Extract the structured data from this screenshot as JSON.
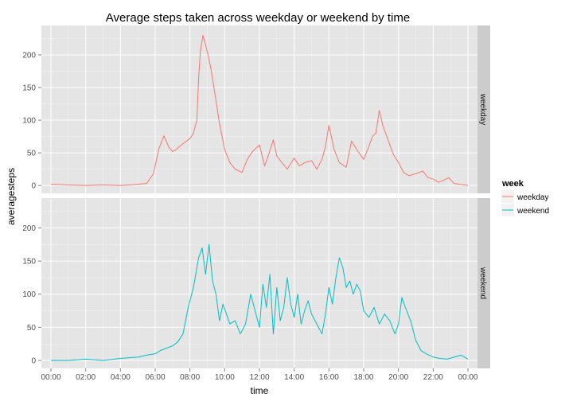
{
  "colors": {
    "panel_bg": "#e5e5e5",
    "strip_bg": "#cccccc",
    "grid_major": "#ffffff",
    "weekday": "#F8766D",
    "weekend": "#00BFC4"
  },
  "chart_data": {
    "type": "line",
    "title": "Average steps taken across weekday or weekend by time",
    "xlabel": "time",
    "ylabel": "averagesteps",
    "x_ticks": [
      "00:00",
      "02:00",
      "04:00",
      "06:00",
      "08:00",
      "10:00",
      "12:00",
      "14:00",
      "16:00",
      "18:00",
      "20:00",
      "22:00",
      "00:00"
    ],
    "x_tick_hours": [
      0,
      2,
      4,
      6,
      8,
      10,
      12,
      14,
      16,
      18,
      20,
      22,
      24
    ],
    "xlim_hours": [
      -0.55,
      24.55
    ],
    "ylim": [
      -12,
      245
    ],
    "y_ticks": [
      0,
      50,
      100,
      150,
      200
    ],
    "grid": true,
    "legend": {
      "title": "week",
      "position": "right",
      "entries": [
        "weekday",
        "weekend"
      ]
    },
    "facets": [
      "weekday",
      "weekend"
    ],
    "series": [
      {
        "name": "weekday",
        "x_hours": [
          0.0,
          1.0,
          2.0,
          3.0,
          4.0,
          5.0,
          5.5,
          5.9,
          6.2,
          6.5,
          6.8,
          7.0,
          7.2,
          7.5,
          7.8,
          8.0,
          8.2,
          8.4,
          8.5,
          8.6,
          8.75,
          9.0,
          9.2,
          9.5,
          9.7,
          10.0,
          10.3,
          10.6,
          11.0,
          11.3,
          11.6,
          12.0,
          12.3,
          12.5,
          12.8,
          13.0,
          13.3,
          13.6,
          14.0,
          14.3,
          14.6,
          15.0,
          15.3,
          15.6,
          15.8,
          16.0,
          16.3,
          16.6,
          17.0,
          17.3,
          17.6,
          18.0,
          18.3,
          18.5,
          18.7,
          18.9,
          19.1,
          19.4,
          19.7,
          20.0,
          20.3,
          20.6,
          21.0,
          21.4,
          21.7,
          22.0,
          22.3,
          22.6,
          22.9,
          23.2,
          23.5,
          23.8,
          24.0
        ],
        "y": [
          2,
          1,
          0,
          1,
          0,
          2,
          3,
          18,
          55,
          76,
          58,
          52,
          55,
          62,
          68,
          72,
          80,
          100,
          165,
          205,
          230,
          205,
          180,
          130,
          95,
          55,
          35,
          25,
          20,
          40,
          52,
          62,
          30,
          45,
          70,
          45,
          35,
          25,
          42,
          30,
          35,
          38,
          25,
          40,
          60,
          92,
          55,
          35,
          28,
          68,
          55,
          40,
          60,
          75,
          80,
          115,
          92,
          70,
          48,
          35,
          20,
          15,
          18,
          22,
          12,
          10,
          5,
          8,
          12,
          3,
          2,
          1,
          0
        ]
      },
      {
        "name": "weekend",
        "x_hours": [
          0.0,
          1.0,
          2.0,
          3.0,
          4.0,
          4.5,
          5.0,
          5.5,
          6.0,
          6.3,
          6.6,
          7.0,
          7.3,
          7.6,
          7.9,
          8.2,
          8.5,
          8.7,
          8.9,
          9.1,
          9.3,
          9.5,
          9.7,
          9.9,
          10.1,
          10.3,
          10.6,
          10.9,
          11.2,
          11.5,
          11.8,
          12.0,
          12.2,
          12.4,
          12.6,
          12.8,
          13.0,
          13.2,
          13.4,
          13.6,
          13.8,
          14.0,
          14.2,
          14.4,
          14.6,
          14.8,
          15.0,
          15.3,
          15.6,
          15.8,
          16.0,
          16.2,
          16.4,
          16.6,
          16.8,
          17.0,
          17.2,
          17.4,
          17.6,
          17.8,
          18.0,
          18.3,
          18.6,
          18.9,
          19.2,
          19.5,
          19.8,
          20.0,
          20.2,
          20.4,
          20.7,
          21.0,
          21.3,
          21.6,
          22.0,
          22.4,
          22.8,
          23.2,
          23.6,
          24.0
        ],
        "y": [
          0,
          0,
          2,
          0,
          3,
          4,
          5,
          8,
          10,
          15,
          18,
          22,
          28,
          40,
          80,
          110,
          155,
          170,
          130,
          175,
          120,
          100,
          60,
          85,
          70,
          55,
          60,
          40,
          55,
          100,
          70,
          50,
          115,
          80,
          130,
          40,
          110,
          60,
          80,
          125,
          85,
          65,
          100,
          55,
          75,
          90,
          70,
          55,
          40,
          70,
          110,
          85,
          125,
          155,
          140,
          110,
          120,
          100,
          115,
          105,
          75,
          65,
          80,
          55,
          70,
          60,
          40,
          55,
          95,
          80,
          60,
          30,
          15,
          10,
          5,
          3,
          2,
          5,
          8,
          2
        ]
      }
    ]
  }
}
